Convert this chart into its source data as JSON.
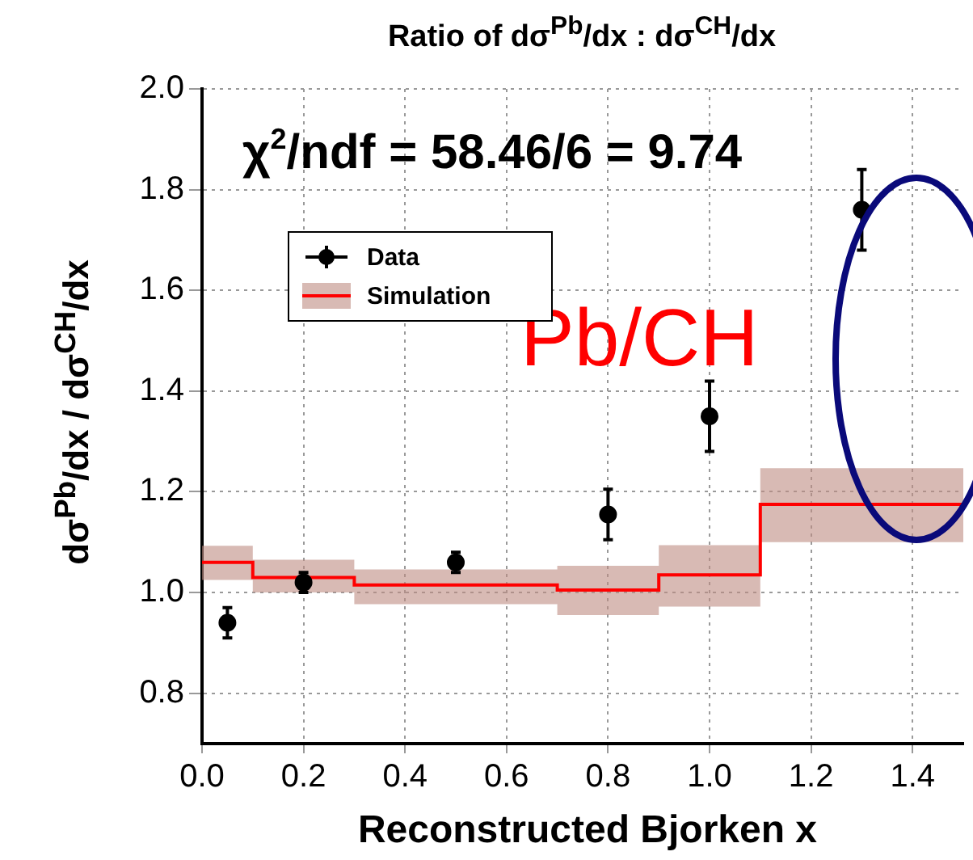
{
  "chart_data": {
    "type": "scatter",
    "title": "Ratio of dσ$^{Pb}$/dx : dσ$^{CH}$/dx",
    "xlabel": "Reconstructed Bjorken x",
    "ylabel": "dσ$^{Pb}$/dx / dσ$^{CH}$/dx",
    "annotations": [
      "χ$^{2}$/ndf = 58.46/6 = 9.74",
      "Pb/CH"
    ],
    "series": [
      {
        "name": "Data",
        "marker": "circle",
        "color": "#000000",
        "x": [
          0.05,
          0.2,
          0.5,
          0.8,
          1.0,
          1.3
        ],
        "values": [
          0.94,
          1.02,
          1.06,
          1.155,
          1.35,
          1.76
        ],
        "errors": [
          0.03,
          0.02,
          0.02,
          0.05,
          0.07,
          0.08
        ]
      },
      {
        "name": "Simulation",
        "type": "step",
        "color": "#ff0000",
        "x": [
          0,
          0.1,
          0.3,
          0.7,
          0.9,
          1.1,
          1.5
        ],
        "values": [
          1.06,
          1.03,
          1.015,
          1.005,
          1.035,
          1.175,
          1.175
        ],
        "lower": [
          1.025,
          1.0,
          0.977,
          0.955,
          0.972,
          1.1,
          1.1
        ],
        "upper": [
          1.093,
          1.065,
          1.046,
          1.053,
          1.094,
          1.247,
          1.247
        ]
      }
    ],
    "xlim": [
      0,
      1.5
    ],
    "xticks": [
      {
        "value": 0,
        "label": "0.0"
      },
      0.2,
      0.4,
      0.6,
      0.8,
      {
        "value": 1,
        "label": "1.0"
      },
      1.2,
      1.4
    ],
    "ylim": [
      0.7,
      2.0
    ],
    "yticks": [
      0.8,
      {
        "value": 1,
        "label": "1.0"
      },
      1.2,
      1.4,
      1.6,
      1.8,
      {
        "value": 2,
        "label": "2.0"
      }
    ],
    "grid": true,
    "legend": "top left"
  }
}
